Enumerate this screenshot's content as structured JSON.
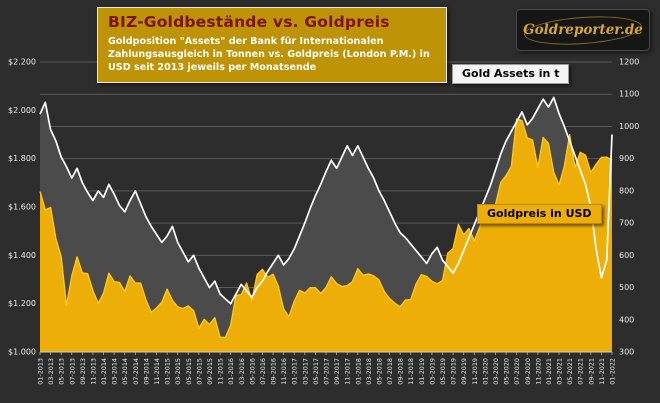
{
  "header": {
    "title": "BIZ-Goldbestände vs. Goldpreis",
    "subtitle": "Goldposition \"Assets\" der Bank für Internationalen Zahlungsausgleich in Tonnen vs. Goldpreis (London P.M.) in USD seit 2013 jeweils per Monatsende",
    "logo_text": "Goldreporter.de"
  },
  "labels": {
    "assets_series": "Gold Assets in t",
    "price_series": "Goldpreis in USD"
  },
  "colors": {
    "background": "#2D2D2D",
    "grid": "#5A5A5A",
    "price_fill": "#EDAF07",
    "price_edge": "#FFC61C",
    "assets_fill": "#4B4B4B",
    "assets_edge": "#FFFFFF",
    "title_box": "#BE9306",
    "title_text": "#7E1300",
    "axis_text": "#ECECEC"
  },
  "chart_data": {
    "type": "area",
    "title": "BIZ-Goldbestände vs. Goldpreis",
    "x_unit": "Monat (per Monatsende)",
    "x_labels": [
      "01-2013",
      "03-2013",
      "05-2013",
      "07-2013",
      "09-2013",
      "11-2013",
      "01-2014",
      "03-2014",
      "05-2014",
      "07-2014",
      "09-2014",
      "11-2014",
      "01-2015",
      "03-2015",
      "05-2015",
      "07-2015",
      "09-2015",
      "11-2015",
      "01-2016",
      "03-2016",
      "05-2016",
      "07-2016",
      "09-2016",
      "11-2016",
      "01-2017",
      "03-2017",
      "05-2017",
      "07-2017",
      "09-2017",
      "11-2017",
      "01-2018",
      "03-2018",
      "05-2018",
      "07-2018",
      "09-2018",
      "11-2018",
      "01-2019",
      "03-2019",
      "05-2019",
      "07-2019",
      "09-2019",
      "11-2019",
      "01-2020",
      "03-2020",
      "05-2020",
      "07-2020",
      "09-2020",
      "11-2020",
      "01-2021",
      "03-2021",
      "05-2021",
      "07-2021",
      "09-2021",
      "11-2021",
      "01-2022"
    ],
    "points_per_x_label": 2,
    "left_axis": {
      "labels": [
        "$2.200",
        "$2.000",
        "$1.800",
        "$1.600",
        "$1.400",
        "$1.200",
        "$1.000"
      ],
      "values": [
        2200,
        2000,
        1800,
        1600,
        1400,
        1200,
        1000
      ],
      "min": 1000,
      "max": 2200
    },
    "right_axis": {
      "labels": [
        "1200",
        "1100",
        "1000",
        "900",
        "800",
        "700",
        "600",
        "500",
        "400",
        "300"
      ],
      "values": [
        1200,
        1100,
        1000,
        900,
        800,
        700,
        600,
        500,
        400,
        300
      ],
      "min": 300,
      "max": 1200
    },
    "grid": true,
    "legend_position": "inside-boxes",
    "series": [
      {
        "name": "Gold Assets in t",
        "axis": "right",
        "values": [
          1038,
          1075,
          990,
          955,
          905,
          875,
          840,
          870,
          825,
          795,
          770,
          800,
          780,
          820,
          790,
          755,
          735,
          770,
          800,
          760,
          720,
          690,
          665,
          640,
          660,
          690,
          640,
          610,
          580,
          600,
          560,
          530,
          500,
          520,
          480,
          465,
          450,
          480,
          510,
          490,
          470,
          500,
          520,
          550,
          575,
          600,
          570,
          590,
          620,
          660,
          700,
          745,
          785,
          820,
          860,
          895,
          870,
          905,
          940,
          910,
          940,
          905,
          870,
          840,
          800,
          770,
          735,
          700,
          670,
          655,
          635,
          615,
          595,
          575,
          605,
          625,
          585,
          565,
          545,
          575,
          615,
          655,
          695,
          735,
          775,
          815,
          865,
          915,
          955,
          985,
          1015,
          1045,
          1005,
          1025,
          1055,
          1085,
          1060,
          1090,
          1040,
          1000,
          955,
          910,
          865,
          820,
          750,
          620,
          530,
          585,
          975
        ]
      },
      {
        "name": "Goldpreis in USD",
        "axis": "left",
        "values": [
          1664,
          1588,
          1598,
          1469,
          1394,
          1192,
          1314,
          1394,
          1327,
          1324,
          1253,
          1201,
          1244,
          1326,
          1291,
          1288,
          1250,
          1315,
          1285,
          1285,
          1216,
          1164,
          1182,
          1206,
          1260,
          1214,
          1187,
          1180,
          1191,
          1171,
          1098,
          1135,
          1114,
          1142,
          1061,
          1060,
          1111,
          1234,
          1237,
          1285,
          1212,
          1320,
          1342,
          1309,
          1322,
          1272,
          1178,
          1146,
          1210,
          1255,
          1244,
          1266,
          1266,
          1242,
          1267,
          1311,
          1283,
          1271,
          1275,
          1291,
          1345,
          1318,
          1323,
          1315,
          1298,
          1250,
          1221,
          1202,
          1187,
          1215,
          1217,
          1281,
          1320,
          1313,
          1292,
          1282,
          1296,
          1409,
          1428,
          1528,
          1485,
          1511,
          1460,
          1515,
          1584,
          1609,
          1609,
          1702,
          1730,
          1768,
          1964,
          1957,
          1886,
          1877,
          1763,
          1888,
          1863,
          1743,
          1691,
          1768,
          1899,
          1763,
          1826,
          1814,
          1743,
          1777,
          1805,
          1806,
          1795
        ]
      }
    ]
  }
}
